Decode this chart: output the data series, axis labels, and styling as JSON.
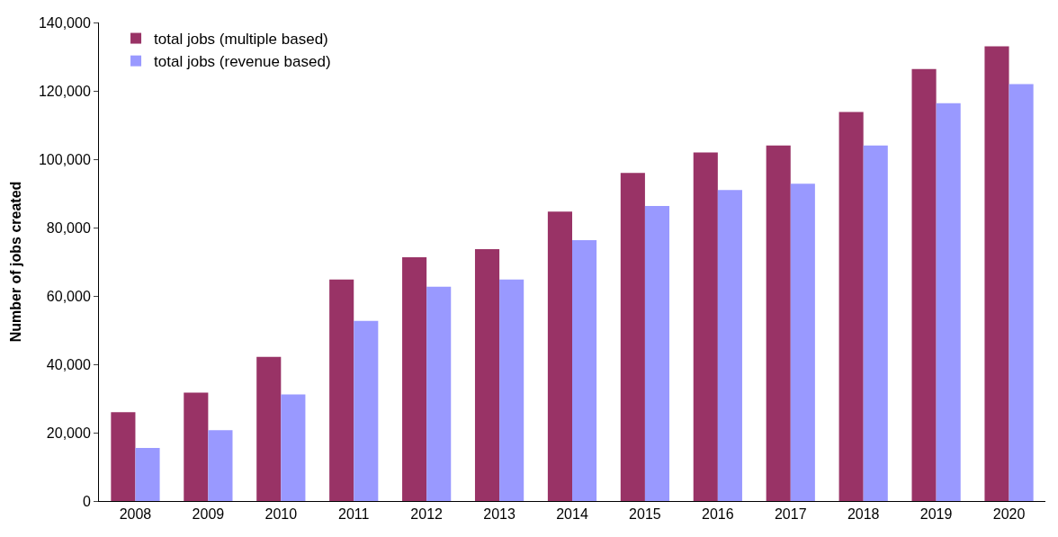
{
  "chart_data": {
    "type": "bar",
    "ylabel": "Number of jobs created",
    "categories": [
      "2008",
      "2009",
      "2010",
      "2011",
      "2012",
      "2013",
      "2014",
      "2015",
      "2016",
      "2017",
      "2018",
      "2019",
      "2020"
    ],
    "series": [
      {
        "name": "total jobs (multiple based)",
        "color": "#993366",
        "values": [
          26000,
          31700,
          42200,
          64800,
          71300,
          73700,
          84700,
          96000,
          102000,
          104000,
          113800,
          126400,
          133000
        ]
      },
      {
        "name": "total jobs (revenue based)",
        "color": "#9999ff",
        "values": [
          15500,
          20700,
          31200,
          52700,
          62700,
          64800,
          76300,
          86300,
          91000,
          92800,
          104000,
          116400,
          122000
        ]
      }
    ],
    "ylim": [
      0,
      140000
    ],
    "yticks": [
      {
        "value": 0,
        "label": "0"
      },
      {
        "value": 20000,
        "label": "20,000"
      },
      {
        "value": 40000,
        "label": "40,000"
      },
      {
        "value": 60000,
        "label": "60,000"
      },
      {
        "value": 80000,
        "label": "80,000"
      },
      {
        "value": 100000,
        "label": "100,000"
      },
      {
        "value": 120000,
        "label": "120,000"
      },
      {
        "value": 140000,
        "label": "140,000"
      }
    ],
    "legend": "top left"
  }
}
